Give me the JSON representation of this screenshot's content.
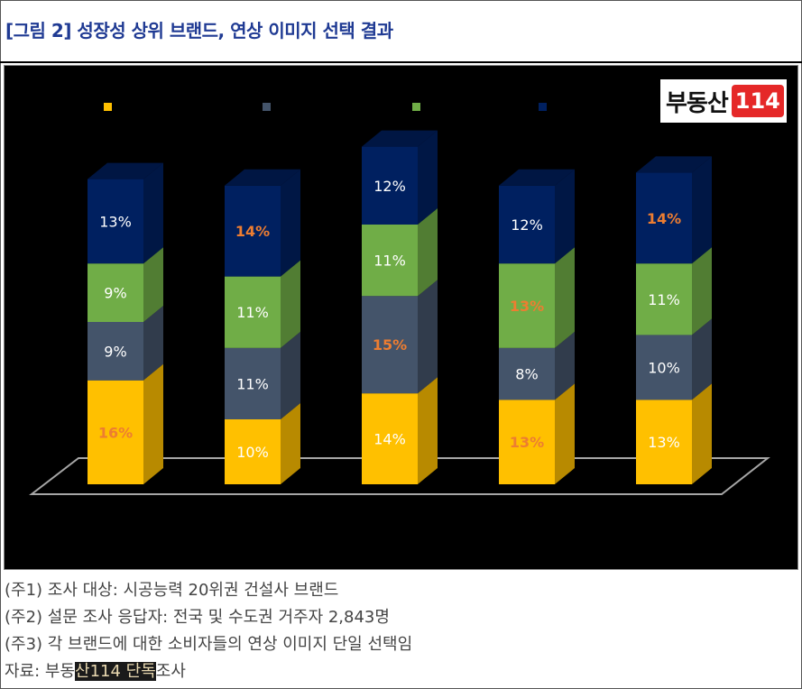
{
  "title": "[그림 2] 성장성 상위 브랜드, 연상 이미지 선택 결과",
  "logo": {
    "text": "부동산",
    "number": "114"
  },
  "colors": {
    "yellow": "#ffc000",
    "slate": "#44546a",
    "green": "#70ad47",
    "navy": "#002060",
    "highlight_label": "#ed7d31",
    "label_white": "#ffffff"
  },
  "chart_data": {
    "type": "bar",
    "stacked": true,
    "style": "3d",
    "categories": [
      "",
      "",
      "",
      "",
      ""
    ],
    "series": [
      {
        "color": "#ffc000",
        "values": [
          16,
          10,
          14,
          13,
          13
        ],
        "labels": [
          "16%",
          "10%",
          "14%",
          "13%",
          "13%"
        ],
        "highlight": [
          true,
          false,
          false,
          true,
          false
        ]
      },
      {
        "color": "#44546a",
        "values": [
          9,
          11,
          15,
          8,
          10
        ],
        "labels": [
          "9%",
          "11%",
          "15%",
          "8%",
          "10%"
        ],
        "highlight": [
          false,
          false,
          true,
          false,
          false
        ]
      },
      {
        "color": "#70ad47",
        "values": [
          9,
          11,
          11,
          13,
          11
        ],
        "labels": [
          "9%",
          "11%",
          "11%",
          "13%",
          "11%"
        ],
        "highlight": [
          false,
          false,
          false,
          true,
          false
        ]
      },
      {
        "color": "#002060",
        "values": [
          13,
          14,
          12,
          12,
          14
        ],
        "labels": [
          "13%",
          "14%",
          "12%",
          "12%",
          "14%"
        ],
        "highlight": [
          false,
          true,
          false,
          false,
          true
        ]
      }
    ],
    "legend": "top",
    "grid": false
  },
  "notes": [
    "(주1) 조사 대상: 시공능력 20위권 건설사 브랜드",
    "(주2) 설문 조사 응답자: 전국 및 수도권 거주자 2,843명",
    "(주3) 각 브랜드에 대한 소비자들의 연상 이미지 단일 선택임"
  ],
  "source": {
    "prefix": "자료: 부동",
    "highlight": "산114 단독",
    "suffix": "조사"
  }
}
